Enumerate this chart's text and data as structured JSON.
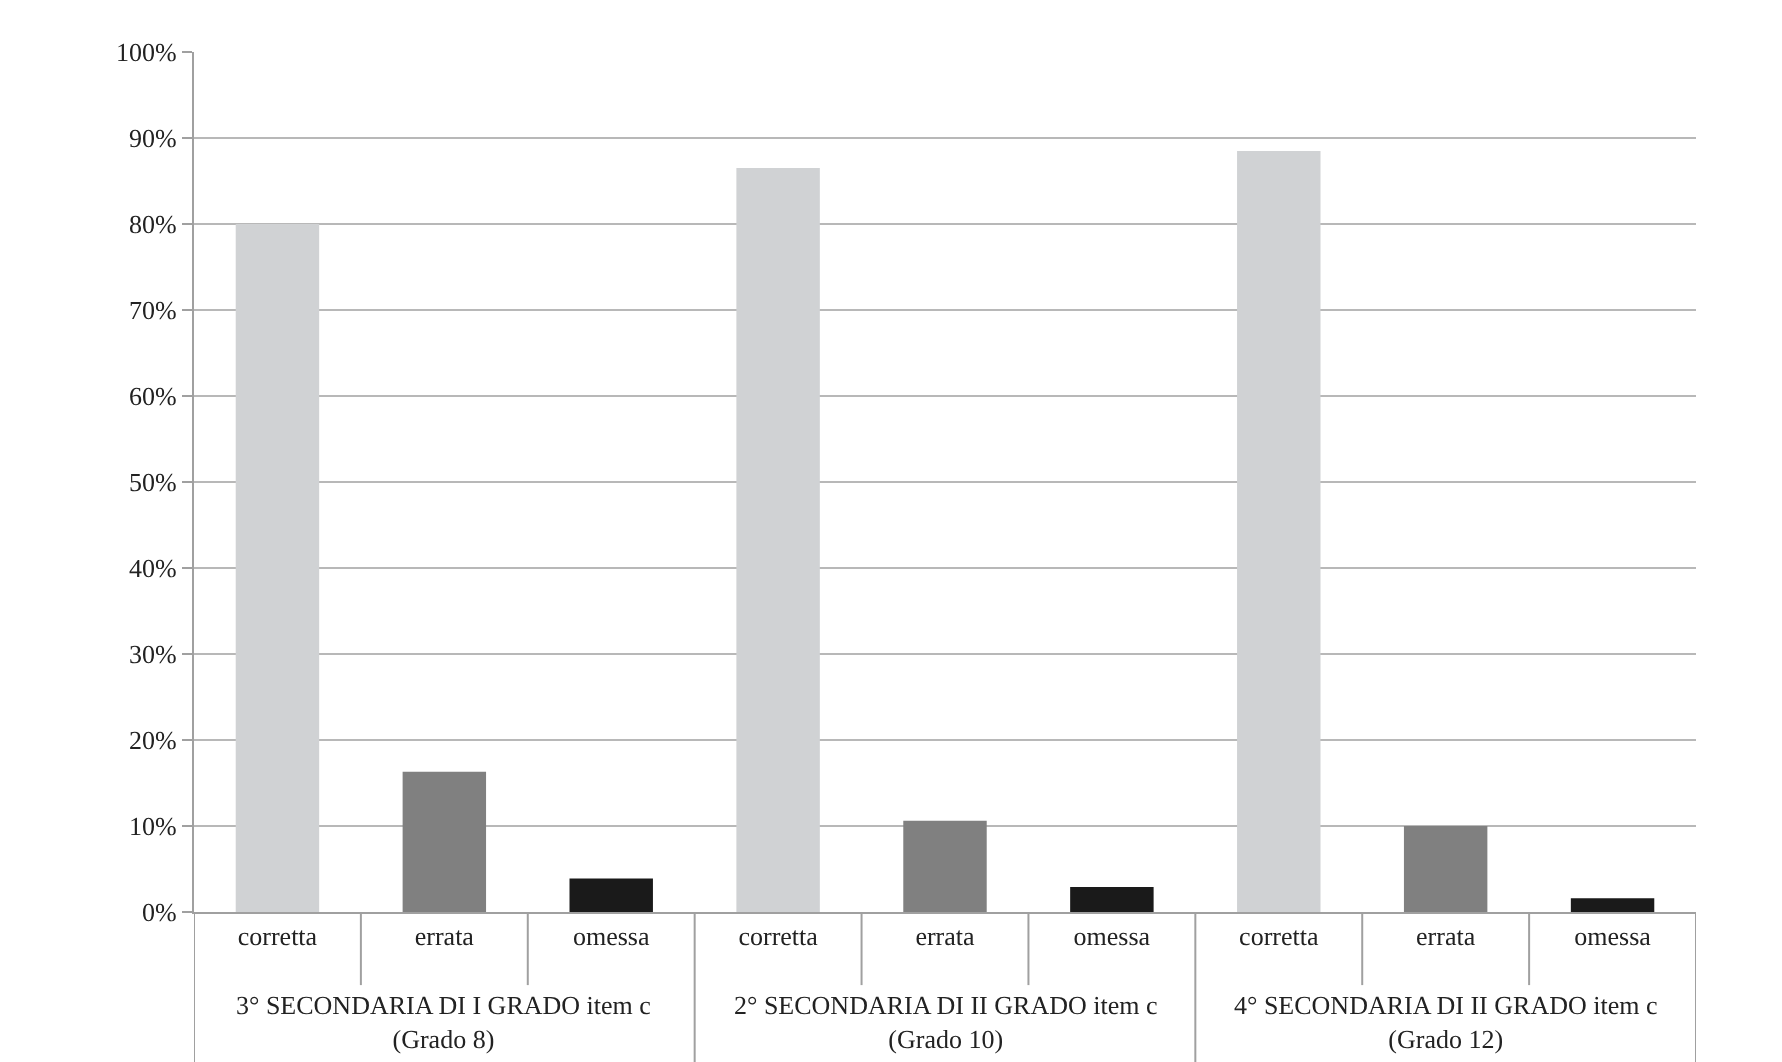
{
  "chart_data": {
    "type": "bar",
    "categories": [
      "corretta",
      "errata",
      "omessa",
      "corretta",
      "errata",
      "omessa",
      "corretta",
      "errata",
      "omessa"
    ],
    "values": [
      80,
      16.3,
      3.9,
      86.5,
      10.6,
      2.9,
      88.5,
      10.0,
      1.6
    ],
    "colors": [
      "#d0d2d4",
      "#808080",
      "#1a1a1a",
      "#d0d2d4",
      "#808080",
      "#1a1a1a",
      "#d0d2d4",
      "#808080",
      "#1a1a1a"
    ],
    "ylim": [
      0,
      100
    ],
    "yticks": [
      {
        "value": 0,
        "label": "0%"
      },
      {
        "value": 10,
        "label": "10%"
      },
      {
        "value": 20,
        "label": "20%"
      },
      {
        "value": 30,
        "label": "30%"
      },
      {
        "value": 40,
        "label": "40%"
      },
      {
        "value": 50,
        "label": "50%"
      },
      {
        "value": 60,
        "label": "60%"
      },
      {
        "value": 70,
        "label": "70%"
      },
      {
        "value": 80,
        "label": "80%"
      },
      {
        "value": 90,
        "label": "90%"
      },
      {
        "value": 100,
        "label": "100%"
      }
    ],
    "grid": "y",
    "annotations": [
      "3° SECONDARIA DI I GRADO item c\n(Grado 8)",
      "2° SECONDARIA DI II GRADO item c\n(Grado 10)",
      "4° SECONDARIA DI II GRADO item c\n(Grado 12)"
    ]
  }
}
